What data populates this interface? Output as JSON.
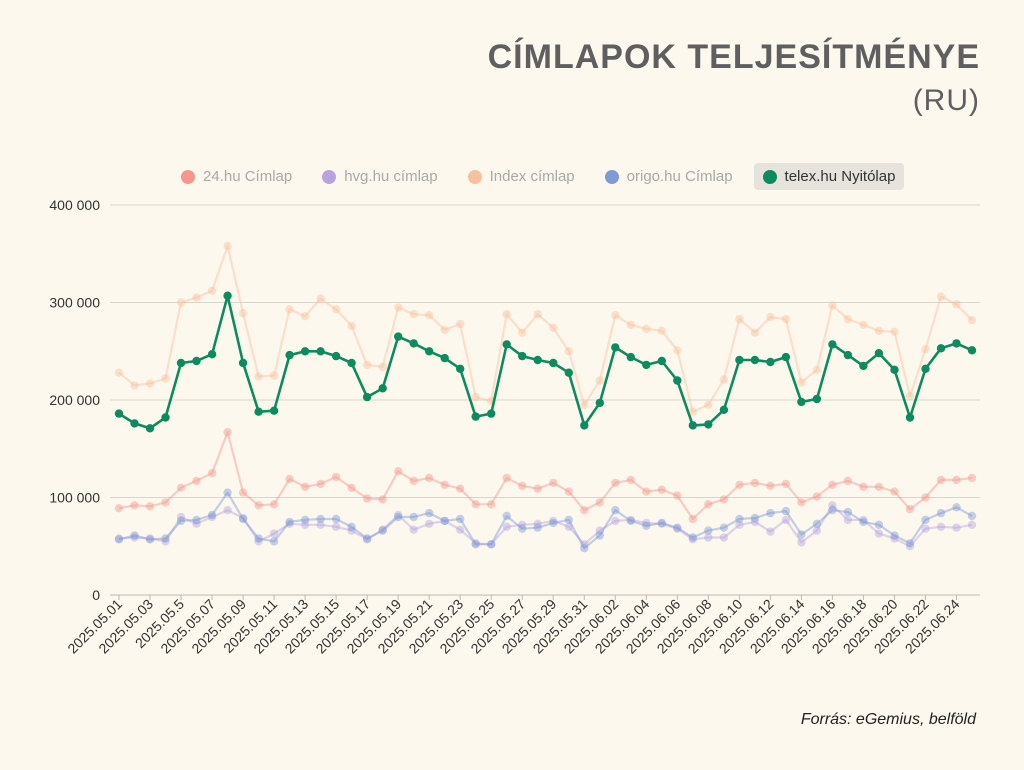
{
  "header": {
    "title": "CÍMLAPOK TELJESÍTMÉNYE",
    "subtitle": "(RU)"
  },
  "source": "Forrás: eGemius, belföld",
  "colors": {
    "24hu": "#f3978f",
    "hvg": "#b9a3df",
    "index": "#f8c19e",
    "origo": "#7f9ad4",
    "telex": "#0e8a5f",
    "grid": "#d9d6cf"
  },
  "chart_data": {
    "type": "line",
    "ylim": [
      0,
      400000
    ],
    "yticks": [
      "0",
      "100 000",
      "200 000",
      "300 000",
      "400 000"
    ],
    "x_tick_labels": [
      "2025.05.01",
      "2025.05.03",
      "2025.05.5",
      "2025.05.07",
      "2025.05.09",
      "2025.05.11",
      "2025.05.13",
      "2025.05.15",
      "2025.05.17",
      "2025.05.19",
      "2025.05.21",
      "2025.05.23",
      "2025.05.25",
      "2025.05.27",
      "2025.05.29",
      "2025.05.31",
      "2025.06.02",
      "2025.06.04",
      "2025.06.06",
      "2025.06.08",
      "2025.06.10",
      "2025.06.12",
      "2025.06.14",
      "2025.06.16",
      "2025.06.18",
      "2025.06.20",
      "2025.06.22",
      "2025.06.24"
    ],
    "x": [
      "2025.05.01",
      "2025.05.02",
      "2025.05.03",
      "2025.05.04",
      "2025.05.05",
      "2025.05.06",
      "2025.05.07",
      "2025.05.08",
      "2025.05.09",
      "2025.05.10",
      "2025.05.11",
      "2025.05.12",
      "2025.05.13",
      "2025.05.14",
      "2025.05.15",
      "2025.05.16",
      "2025.05.17",
      "2025.05.18",
      "2025.05.19",
      "2025.05.20",
      "2025.05.21",
      "2025.05.22",
      "2025.05.23",
      "2025.05.24",
      "2025.05.25",
      "2025.05.26",
      "2025.05.27",
      "2025.05.28",
      "2025.05.29",
      "2025.05.30",
      "2025.05.31",
      "2025.06.01",
      "2025.06.02",
      "2025.06.03",
      "2025.06.04",
      "2025.06.05",
      "2025.06.06",
      "2025.06.07",
      "2025.06.08",
      "2025.06.09",
      "2025.06.10",
      "2025.06.11",
      "2025.06.12",
      "2025.06.13",
      "2025.06.14",
      "2025.06.15",
      "2025.06.16",
      "2025.06.17",
      "2025.06.18",
      "2025.06.19",
      "2025.06.20",
      "2025.06.21",
      "2025.06.22",
      "2025.06.23",
      "2025.06.24",
      "2025.06.25"
    ],
    "legend_position": "top",
    "grid": true,
    "series": [
      {
        "name": "24.hu Címlap",
        "color": "#f3978f",
        "active": false,
        "values": [
          89000,
          92000,
          91000,
          95000,
          110000,
          117000,
          125000,
          167000,
          105000,
          92000,
          93000,
          119000,
          111000,
          114000,
          121000,
          110000,
          99000,
          98000,
          127000,
          117000,
          120000,
          113000,
          109000,
          93000,
          93000,
          120000,
          112000,
          109000,
          115000,
          106000,
          87000,
          95000,
          115000,
          118000,
          106000,
          108000,
          102000,
          78000,
          93000,
          98000,
          113000,
          115000,
          112000,
          114000,
          95000,
          101000,
          113000,
          117000,
          111000,
          111000,
          106000,
          88000,
          100000,
          118000,
          118000,
          120000
        ]
      },
      {
        "name": "hvg.hu címlap",
        "color": "#b9a3df",
        "active": false,
        "values": [
          58000,
          59000,
          58000,
          55000,
          80000,
          73000,
          80000,
          87000,
          79000,
          55000,
          63000,
          73000,
          72000,
          72000,
          70000,
          66000,
          57000,
          67000,
          82000,
          67000,
          73000,
          76000,
          67000,
          53000,
          52000,
          70000,
          72000,
          73000,
          76000,
          70000,
          52000,
          66000,
          76000,
          77000,
          74000,
          73000,
          68000,
          57000,
          59000,
          59000,
          72000,
          75000,
          65000,
          77000,
          54000,
          66000,
          92000,
          77000,
          77000,
          63000,
          58000,
          50000,
          68000,
          70000,
          69000,
          72000
        ]
      },
      {
        "name": "Index címlap",
        "color": "#f8c19e",
        "active": false,
        "values": [
          228000,
          215000,
          217000,
          222000,
          300000,
          305000,
          312000,
          358000,
          289000,
          224000,
          225000,
          293000,
          286000,
          304000,
          293000,
          276000,
          236000,
          234000,
          295000,
          288000,
          287000,
          272000,
          278000,
          203000,
          199000,
          288000,
          269000,
          288000,
          274000,
          250000,
          195000,
          220000,
          287000,
          277000,
          273000,
          271000,
          251000,
          188000,
          195000,
          221000,
          283000,
          269000,
          285000,
          283000,
          218000,
          231000,
          297000,
          283000,
          277000,
          271000,
          270000,
          204000,
          252000,
          306000,
          298000,
          282000
        ]
      },
      {
        "name": "origo.hu Címlap",
        "color": "#7f9ad4",
        "active": false,
        "values": [
          57000,
          61000,
          57000,
          58000,
          76000,
          77000,
          82000,
          105000,
          78000,
          58000,
          55000,
          75000,
          77000,
          78000,
          78000,
          70000,
          58000,
          66000,
          80000,
          80000,
          84000,
          76000,
          78000,
          52000,
          52000,
          81000,
          68000,
          69000,
          74000,
          77000,
          48000,
          61000,
          87000,
          76000,
          71000,
          74000,
          69000,
          59000,
          66000,
          69000,
          78000,
          79000,
          84000,
          86000,
          62000,
          73000,
          87000,
          85000,
          75000,
          72000,
          61000,
          53000,
          77000,
          84000,
          90000,
          81000
        ]
      },
      {
        "name": "telex.hu Nyitólap",
        "color": "#0e8a5f",
        "active": true,
        "values": [
          186000,
          176000,
          171000,
          182000,
          238000,
          240000,
          247000,
          307000,
          238000,
          188000,
          189000,
          246000,
          250000,
          250000,
          245000,
          238000,
          203000,
          212000,
          265000,
          258000,
          250000,
          243000,
          232000,
          183000,
          186000,
          257000,
          245000,
          241000,
          238000,
          228000,
          174000,
          197000,
          254000,
          244000,
          236000,
          240000,
          220000,
          174000,
          175000,
          190000,
          241000,
          241000,
          239000,
          244000,
          198000,
          201000,
          257000,
          246000,
          235000,
          248000,
          231000,
          182000,
          232000,
          253000,
          258000,
          251000
        ]
      }
    ]
  }
}
